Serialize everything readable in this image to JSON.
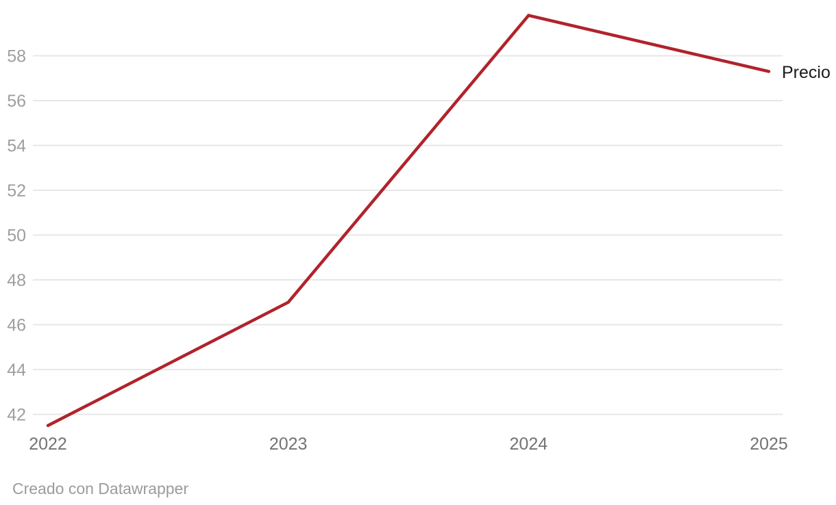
{
  "chart_data": {
    "type": "line",
    "title": "",
    "x": [
      2022,
      2023,
      2024,
      2025
    ],
    "x_tick_labels": [
      "2022",
      "2023",
      "2024",
      "2025"
    ],
    "series": [
      {
        "name": "Precio",
        "values": [
          41.5,
          47.0,
          59.8,
          57.3
        ]
      }
    ],
    "y_ticks": [
      42,
      44,
      46,
      48,
      50,
      52,
      54,
      56,
      58
    ],
    "ylim": [
      41.5,
      59.9
    ],
    "grid": "horizontal",
    "legend_position": "end-of-line-right",
    "style": {
      "line_color": "#b1232b",
      "grid_color": "#e7e7e7",
      "y_tick_color": "#9e9e9e",
      "x_tick_color": "#737373",
      "series_label_color": "#1a1a1a",
      "footer_color": "#9b9b9b",
      "background": "#ffffff"
    }
  },
  "footer": {
    "credit": "Creado con Datawrapper"
  }
}
